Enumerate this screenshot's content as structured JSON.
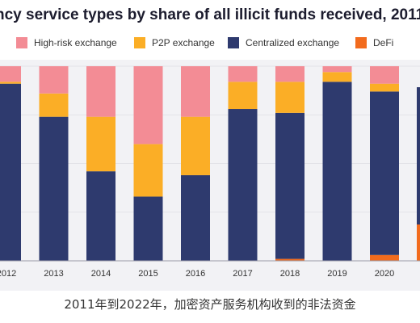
{
  "caption": "2011年到2022年，加密资产服务机构收到的非法资金",
  "chart_data": {
    "type": "bar",
    "stacked": true,
    "title": "ncy service types by share of all illicit funds received, 2011 -",
    "xlabel": "",
    "ylabel": "",
    "ylim": [
      0,
      100
    ],
    "legend_position": "top",
    "categories": [
      "2012",
      "2013",
      "2014",
      "2015",
      "2016",
      "2017",
      "2018",
      "2019",
      "2020"
    ],
    "series": [
      {
        "name": "DeFi",
        "color": "#f26b1d",
        "values": [
          0,
          0,
          0,
          0,
          0,
          0,
          1,
          0,
          3
        ]
      },
      {
        "name": "Centralized exchange",
        "color": "#2e3a6e",
        "values": [
          91,
          74,
          46,
          33,
          44,
          78,
          75,
          92,
          84
        ]
      },
      {
        "name": "P2P exchange",
        "color": "#fbae26",
        "values": [
          1,
          12,
          28,
          27,
          30,
          14,
          16,
          5,
          4
        ]
      },
      {
        "name": "High-risk exchange",
        "color": "#f38c95",
        "values": [
          8,
          14,
          26,
          40,
          26,
          8,
          8,
          3,
          9
        ]
      }
    ],
    "legend": [
      "High-risk exchange",
      "P2P exchange",
      "Centralized exchange",
      "DeFi"
    ],
    "partial_right_edge": {
      "colors": [
        "#2e3a6e",
        "#f26b1d"
      ]
    }
  }
}
